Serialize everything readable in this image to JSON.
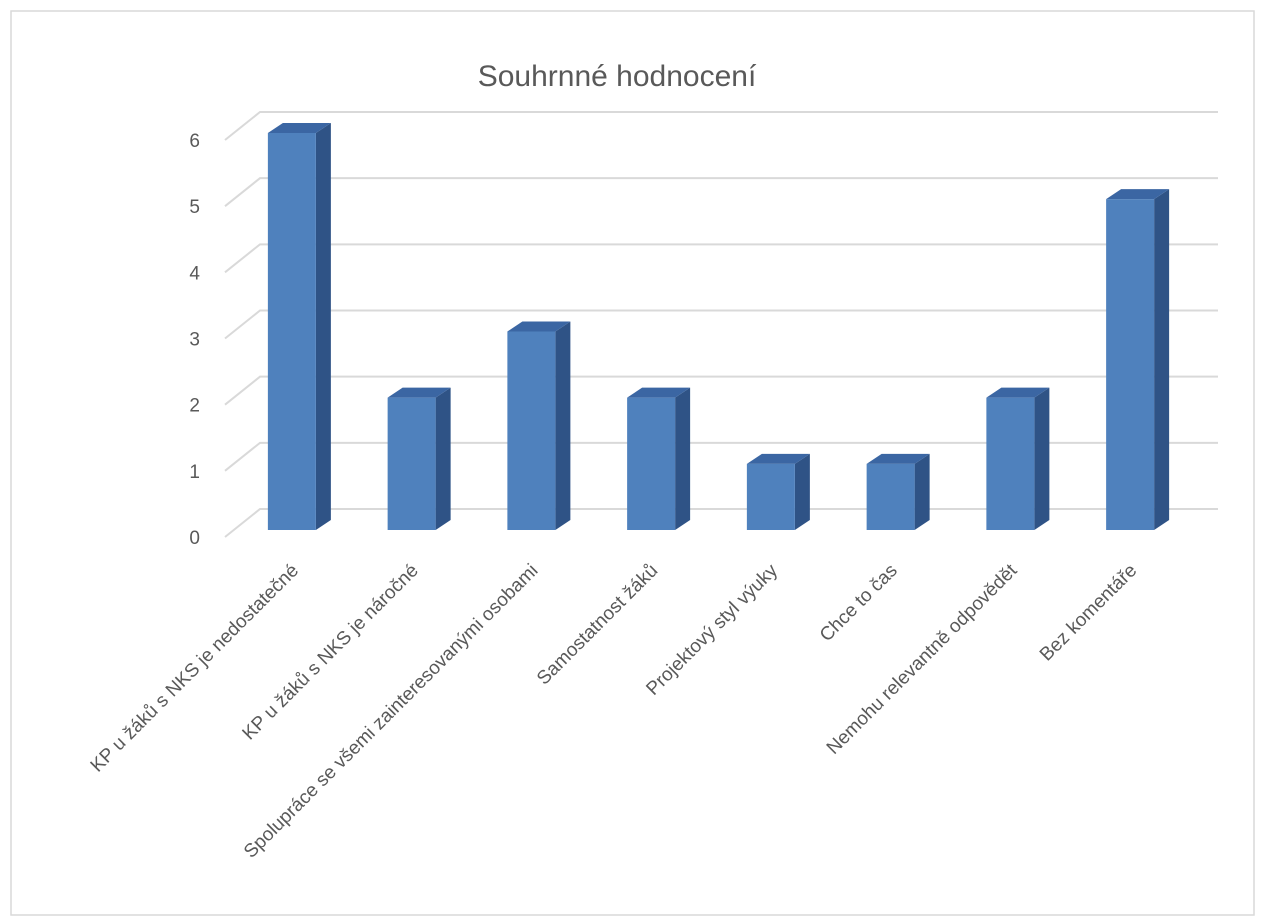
{
  "chart_data": {
    "type": "bar3d",
    "title": "Souhrnné hodnocení",
    "categories": [
      "KP u žáků s NKS je nedostatečné",
      "KP u žáků s NKS je náročné",
      "Spolupráce se všemi zainteresovanými osobami",
      "Samostatnost žáků",
      "Projektový styl výuky",
      "Chce to čas",
      "Nemohu relevantně odpovědět",
      "Bez komentáře"
    ],
    "values": [
      6,
      2,
      3,
      2,
      1,
      1,
      2,
      5
    ],
    "color": "#4f81bd",
    "ylim": [
      0,
      6
    ],
    "yticks": [
      0,
      1,
      2,
      3,
      4,
      5,
      6
    ],
    "grid": true
  }
}
